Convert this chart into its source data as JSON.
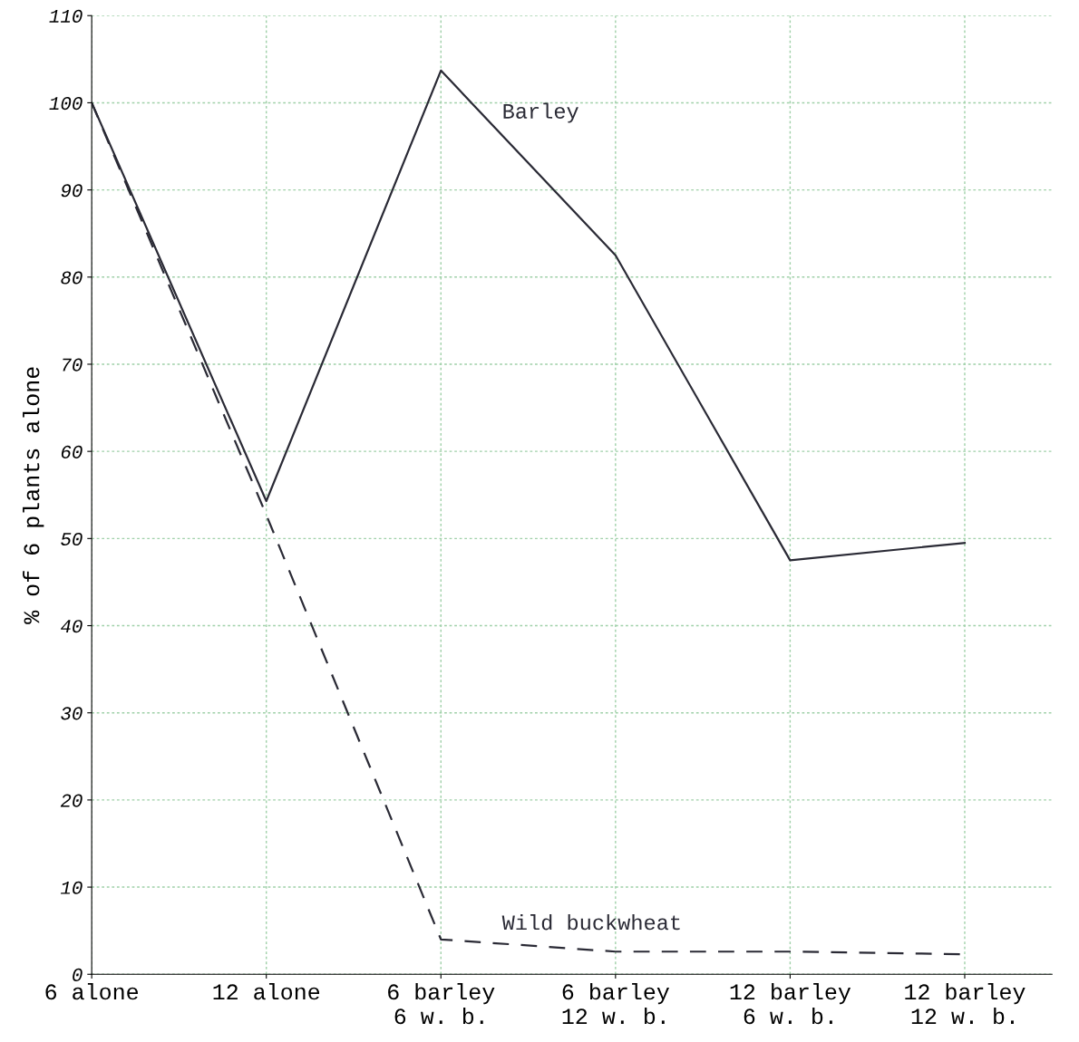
{
  "chart_data": {
    "type": "line",
    "ylabel": "% of 6 plants alone",
    "categories": [
      "6 alone",
      "12 alone",
      "6 barley\n6 w. b.",
      "6 barley\n12 w. b.",
      "12 barley\n6 w. b.",
      "12 barley\n12 w. b."
    ],
    "series": [
      {
        "name": "Barley",
        "color": "#2a2a35",
        "line_style": "solid",
        "values": [
          100,
          54.3,
          103.7,
          82.5,
          47.5,
          49.5
        ]
      },
      {
        "name": "Wild buckwheat",
        "color": "#2a2a35",
        "line_style": "dashed",
        "values": [
          100,
          52.7,
          4.0,
          2.6,
          2.6,
          2.3
        ]
      }
    ],
    "ylim": [
      0,
      110
    ],
    "yticks": [
      0,
      10,
      20,
      30,
      40,
      50,
      60,
      70,
      80,
      90,
      100,
      110
    ],
    "grid": true,
    "marker": "none",
    "legend": false
  }
}
